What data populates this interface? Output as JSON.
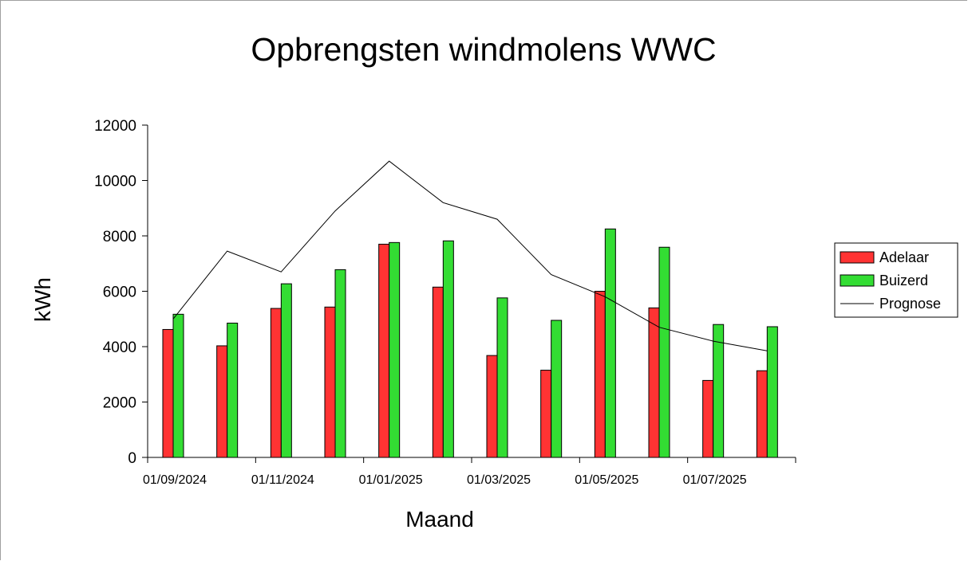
{
  "chart_data": {
    "type": "bar",
    "title": "Opbrengsten windmolens WWC",
    "xlabel": "Maand",
    "ylabel": "kWh",
    "ylim": [
      0,
      12000
    ],
    "yticks": [
      "0",
      "2000",
      "4000",
      "6000",
      "8000",
      "10000",
      "12000"
    ],
    "x_tick_labels": [
      "01/09/2024",
      "01/11/2024",
      "01/01/2025",
      "01/03/2025",
      "01/05/2025",
      "01/07/2025"
    ],
    "categories": [
      "09/2024",
      "10/2024",
      "11/2024",
      "12/2024",
      "01/2025",
      "02/2025",
      "03/2025",
      "04/2025",
      "05/2025",
      "06/2025",
      "07/2025",
      "08/2025"
    ],
    "series": [
      {
        "name": "Adelaar",
        "kind": "bar",
        "color": "#ff3333",
        "values": [
          4620,
          4030,
          5380,
          5430,
          7700,
          6150,
          3680,
          3150,
          6000,
          5400,
          2780,
          3130
        ]
      },
      {
        "name": "Buizerd",
        "kind": "bar",
        "color": "#33dd33",
        "values": [
          5170,
          4850,
          6270,
          6780,
          7760,
          7820,
          5760,
          4950,
          8250,
          7590,
          4800,
          4720
        ]
      },
      {
        "name": "Prognose",
        "kind": "line",
        "color": "#000000",
        "values": [
          5000,
          7450,
          6700,
          8900,
          10700,
          9200,
          8600,
          6600,
          5800,
          4700,
          4200,
          3850
        ]
      }
    ],
    "legend": "right",
    "grid": false
  }
}
